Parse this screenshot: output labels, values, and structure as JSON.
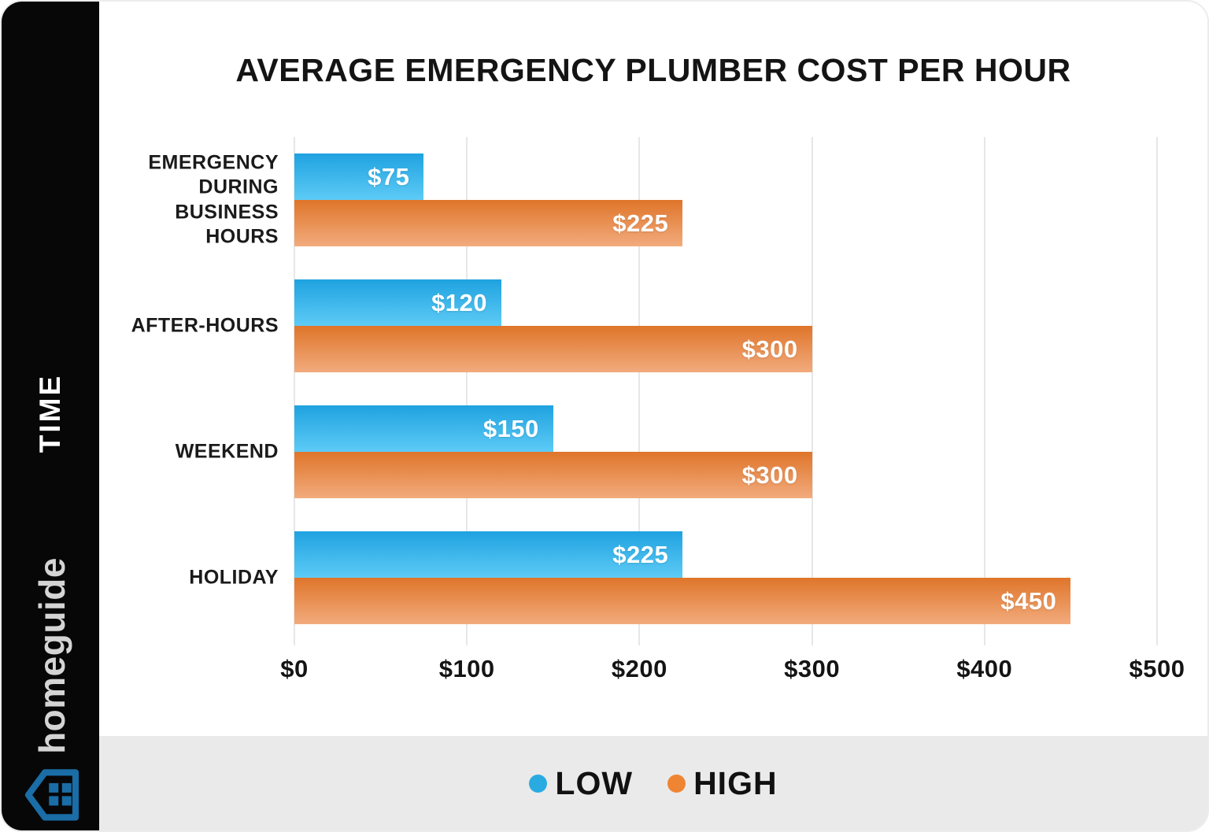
{
  "sidebar": {
    "axis_group_label": "TIME",
    "brand": "homeguide",
    "brand_text_color": "#d4d4d4",
    "house_icon_color": "#1a6da6"
  },
  "chart_data": {
    "type": "bar",
    "orientation": "horizontal",
    "title": "AVERAGE EMERGENCY PLUMBER COST PER HOUR",
    "ylabel": "TIME",
    "xlabel": "",
    "xlim": [
      0,
      500
    ],
    "x_ticks": [
      "$0",
      "$100",
      "$200",
      "$300",
      "$400",
      "$500"
    ],
    "grid": true,
    "legend_position": "bottom",
    "categories": [
      "EMERGENCY DURING BUSINESS HOURS",
      "AFTER-HOURS",
      "WEEKEND",
      "HOLIDAY"
    ],
    "series": [
      {
        "name": "LOW",
        "color": "#29abe2",
        "color_top": "#1fa2e0",
        "color_bottom": "#5dcbf6",
        "values": [
          75,
          120,
          150,
          225
        ],
        "labels": [
          "$75",
          "$120",
          "$150",
          "$225"
        ]
      },
      {
        "name": "HIGH",
        "color": "#ef8532",
        "color_top": "#df752a",
        "color_bottom": "#f2ab7d",
        "values": [
          225,
          300,
          300,
          450
        ],
        "labels": [
          "$225",
          "$300",
          "$300",
          "$450"
        ]
      }
    ]
  },
  "legend": {
    "items": [
      {
        "label": "LOW",
        "color": "#29abe2"
      },
      {
        "label": "HIGH",
        "color": "#ef8532"
      }
    ]
  }
}
